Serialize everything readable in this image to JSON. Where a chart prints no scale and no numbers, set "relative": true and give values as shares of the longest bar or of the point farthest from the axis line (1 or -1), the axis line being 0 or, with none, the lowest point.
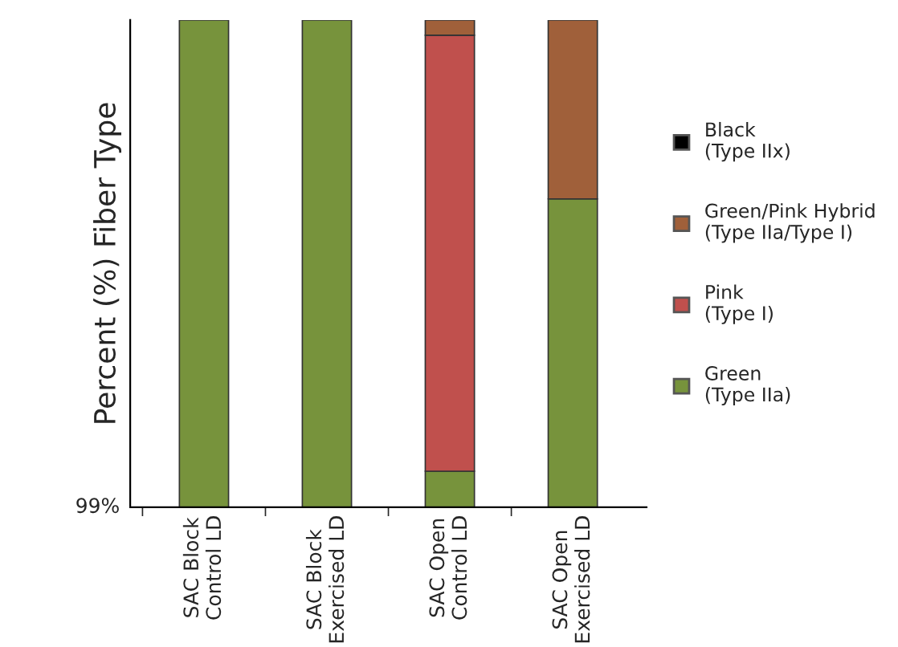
{
  "chart_data": {
    "type": "bar",
    "stacked": true,
    "relative": true,
    "ylabel": "Percent (%) Fiber Type",
    "categories": [
      "SAC Block Control LD",
      "SAC Block Exercised LD",
      "SAC Open Control LD",
      "SAC Open Exercised LD"
    ],
    "series": [
      {
        "name": "Green (Type IIa)",
        "color": "#77933c",
        "values": [
          1,
          1,
          0.074,
          0.633
        ]
      },
      {
        "name": "Pink (Type I)",
        "color": "#c0504d",
        "values": [
          0,
          0,
          0.895,
          0
        ]
      },
      {
        "name": "Green/Pink Hybrid (Type IIa/Type I)",
        "color": "#a0603a",
        "values": [
          0,
          0,
          0.031,
          0.367
        ]
      },
      {
        "name": "Black (Type IIx)",
        "color": "#000000",
        "values": [
          0,
          0,
          0,
          0
        ]
      }
    ],
    "annotations": [
      "99%"
    ],
    "legend": "right"
  }
}
